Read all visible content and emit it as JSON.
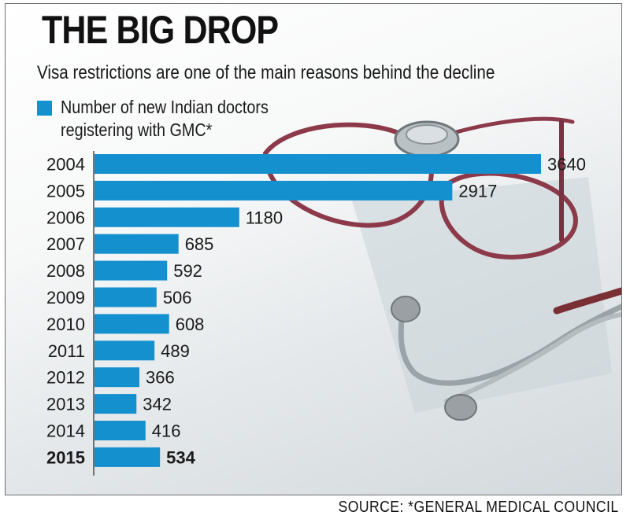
{
  "header": {
    "title": "THE BIG DROP",
    "subtitle": "Visa restrictions are one of the main reasons behind the decline"
  },
  "legend": {
    "label": "Number of new Indian doctors registering with GMC*",
    "color": "#1590cf"
  },
  "source": "SOURCE: *GENERAL MEDICAL COUNCIL",
  "colors": {
    "bar": "#1590cf",
    "text": "#1a1a1a",
    "axis": "#4a4a4a"
  },
  "chart_data": {
    "type": "bar",
    "orientation": "horizontal",
    "categories": [
      "2004",
      "2005",
      "2006",
      "2007",
      "2008",
      "2009",
      "2010",
      "2011",
      "2012",
      "2013",
      "2014",
      "2015"
    ],
    "values": [
      3640,
      2917,
      1180,
      685,
      592,
      506,
      608,
      489,
      366,
      342,
      416,
      534
    ],
    "highlighted_category": "2015",
    "xlim": [
      0,
      3640
    ],
    "grid": false,
    "legend_position": "top-left"
  }
}
